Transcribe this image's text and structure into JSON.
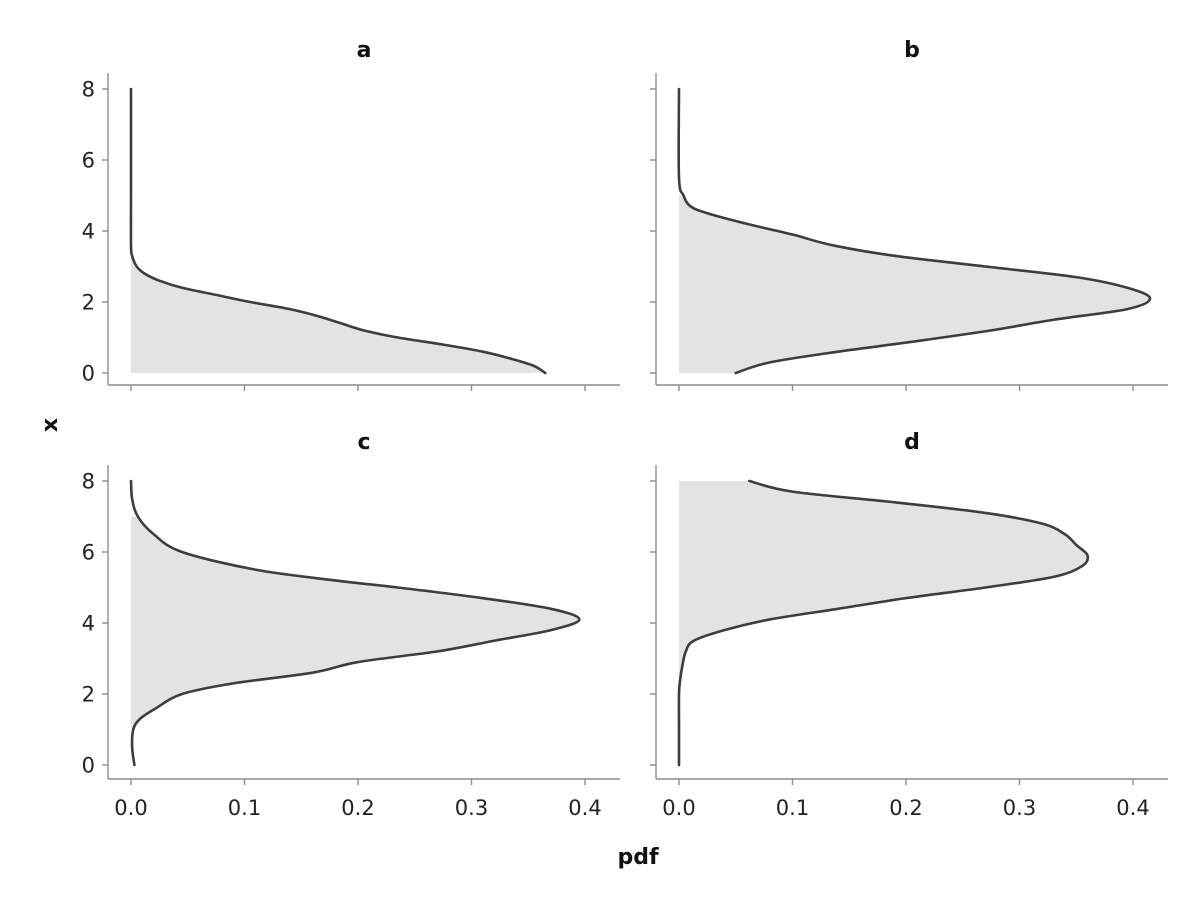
{
  "chart_data": {
    "type": "area",
    "orientation": "horizontal-density",
    "xlabel": "pdf",
    "ylabel": "x",
    "xlim": [
      0,
      0.4
    ],
    "ylim": [
      0,
      8
    ],
    "x_ticks": [
      0.0,
      0.1,
      0.2,
      0.3,
      0.4
    ],
    "x_tick_labels": [
      "0.0",
      "0.1",
      "0.2",
      "0.3",
      "0.4"
    ],
    "y_ticks": [
      0,
      2,
      4,
      6,
      8
    ],
    "y_tick_labels": [
      "0",
      "2",
      "4",
      "6",
      "8"
    ],
    "grid": false,
    "fill_color": "#e3e3e3",
    "line_color": "#3d3d3d",
    "panels": [
      {
        "title": "a",
        "fill_range": [
          0,
          3.6
        ],
        "points": [
          {
            "x": 8.0,
            "pdf": 0.0
          },
          {
            "x": 5.0,
            "pdf": 0.0
          },
          {
            "x": 3.6,
            "pdf": 0.0
          },
          {
            "x": 3.3,
            "pdf": 0.001
          },
          {
            "x": 3.0,
            "pdf": 0.005
          },
          {
            "x": 2.8,
            "pdf": 0.012
          },
          {
            "x": 2.6,
            "pdf": 0.025
          },
          {
            "x": 2.4,
            "pdf": 0.045
          },
          {
            "x": 2.2,
            "pdf": 0.075
          },
          {
            "x": 2.0,
            "pdf": 0.105
          },
          {
            "x": 1.8,
            "pdf": 0.14
          },
          {
            "x": 1.6,
            "pdf": 0.165
          },
          {
            "x": 1.4,
            "pdf": 0.185
          },
          {
            "x": 1.2,
            "pdf": 0.205
          },
          {
            "x": 1.0,
            "pdf": 0.235
          },
          {
            "x": 0.8,
            "pdf": 0.275
          },
          {
            "x": 0.6,
            "pdf": 0.31
          },
          {
            "x": 0.4,
            "pdf": 0.335
          },
          {
            "x": 0.2,
            "pdf": 0.355
          },
          {
            "x": 0.0,
            "pdf": 0.365
          }
        ]
      },
      {
        "title": "b",
        "fill_range": [
          0,
          5.3
        ],
        "points": [
          {
            "x": 8.0,
            "pdf": 0.0
          },
          {
            "x": 5.5,
            "pdf": 0.0
          },
          {
            "x": 5.0,
            "pdf": 0.004
          },
          {
            "x": 4.7,
            "pdf": 0.01
          },
          {
            "x": 4.5,
            "pdf": 0.025
          },
          {
            "x": 4.2,
            "pdf": 0.06
          },
          {
            "x": 3.9,
            "pdf": 0.1
          },
          {
            "x": 3.6,
            "pdf": 0.135
          },
          {
            "x": 3.3,
            "pdf": 0.19
          },
          {
            "x": 3.0,
            "pdf": 0.27
          },
          {
            "x": 2.7,
            "pdf": 0.35
          },
          {
            "x": 2.4,
            "pdf": 0.395
          },
          {
            "x": 2.1,
            "pdf": 0.415
          },
          {
            "x": 1.8,
            "pdf": 0.395
          },
          {
            "x": 1.5,
            "pdf": 0.33
          },
          {
            "x": 1.2,
            "pdf": 0.275
          },
          {
            "x": 0.9,
            "pdf": 0.21
          },
          {
            "x": 0.6,
            "pdf": 0.14
          },
          {
            "x": 0.3,
            "pdf": 0.08
          },
          {
            "x": 0.0,
            "pdf": 0.05
          }
        ]
      },
      {
        "title": "c",
        "fill_range": [
          0.9,
          7.2
        ],
        "points": [
          {
            "x": 8.0,
            "pdf": 0.0
          },
          {
            "x": 7.5,
            "pdf": 0.001
          },
          {
            "x": 7.0,
            "pdf": 0.006
          },
          {
            "x": 6.5,
            "pdf": 0.02
          },
          {
            "x": 6.0,
            "pdf": 0.045
          },
          {
            "x": 5.5,
            "pdf": 0.11
          },
          {
            "x": 5.2,
            "pdf": 0.18
          },
          {
            "x": 5.0,
            "pdf": 0.235
          },
          {
            "x": 4.7,
            "pdf": 0.31
          },
          {
            "x": 4.4,
            "pdf": 0.37
          },
          {
            "x": 4.1,
            "pdf": 0.395
          },
          {
            "x": 3.8,
            "pdf": 0.37
          },
          {
            "x": 3.5,
            "pdf": 0.32
          },
          {
            "x": 3.2,
            "pdf": 0.27
          },
          {
            "x": 2.9,
            "pdf": 0.2
          },
          {
            "x": 2.6,
            "pdf": 0.16
          },
          {
            "x": 2.3,
            "pdf": 0.09
          },
          {
            "x": 2.0,
            "pdf": 0.045
          },
          {
            "x": 1.6,
            "pdf": 0.022
          },
          {
            "x": 1.3,
            "pdf": 0.008
          },
          {
            "x": 1.0,
            "pdf": 0.002
          },
          {
            "x": 0.5,
            "pdf": 0.001
          },
          {
            "x": 0.0,
            "pdf": 0.003
          }
        ]
      },
      {
        "title": "d",
        "fill_range": [
          2.2,
          8.0
        ],
        "points": [
          {
            "x": 8.0,
            "pdf": 0.062
          },
          {
            "x": 7.7,
            "pdf": 0.1
          },
          {
            "x": 7.4,
            "pdf": 0.19
          },
          {
            "x": 7.1,
            "pdf": 0.27
          },
          {
            "x": 6.8,
            "pdf": 0.32
          },
          {
            "x": 6.5,
            "pdf": 0.34
          },
          {
            "x": 6.2,
            "pdf": 0.35
          },
          {
            "x": 5.9,
            "pdf": 0.36
          },
          {
            "x": 5.6,
            "pdf": 0.355
          },
          {
            "x": 5.3,
            "pdf": 0.33
          },
          {
            "x": 5.0,
            "pdf": 0.27
          },
          {
            "x": 4.7,
            "pdf": 0.2
          },
          {
            "x": 4.4,
            "pdf": 0.14
          },
          {
            "x": 4.1,
            "pdf": 0.08
          },
          {
            "x": 3.8,
            "pdf": 0.04
          },
          {
            "x": 3.5,
            "pdf": 0.013
          },
          {
            "x": 3.2,
            "pdf": 0.006
          },
          {
            "x": 2.8,
            "pdf": 0.003
          },
          {
            "x": 2.4,
            "pdf": 0.001
          },
          {
            "x": 2.0,
            "pdf": 0.0
          },
          {
            "x": 1.0,
            "pdf": 0.0
          },
          {
            "x": 0.0,
            "pdf": 0.0
          }
        ]
      }
    ]
  }
}
